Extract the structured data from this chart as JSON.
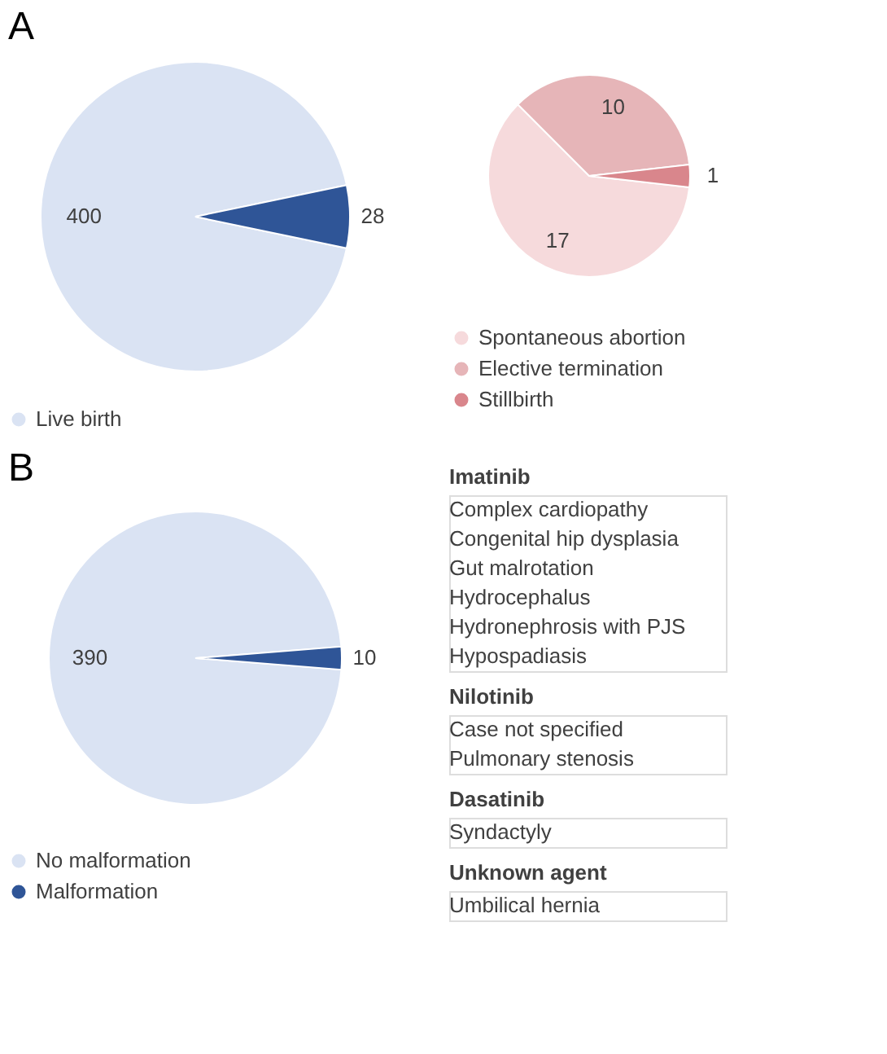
{
  "chart_data": [
    {
      "type": "pie",
      "title": "A",
      "categories": [
        "Live birth",
        null
      ],
      "values": [
        400,
        28
      ],
      "colors": [
        "#dae3f3",
        "#2f5597"
      ],
      "data_labels": true,
      "legend": "bottom"
    },
    {
      "type": "pie",
      "categories": [
        "Spontaneous abortion",
        "Elective termination",
        "Stillbirth"
      ],
      "values": [
        17,
        10,
        1
      ],
      "colors": [
        "#f6dadc",
        "#e6b5b8",
        "#d9868c"
      ],
      "data_labels": true,
      "legend": "bottom"
    },
    {
      "type": "pie",
      "title": "B",
      "categories": [
        "No malformation",
        "Malformation"
      ],
      "values": [
        390,
        10
      ],
      "colors": [
        "#dae3f3",
        "#2f5597"
      ],
      "data_labels": true,
      "legend": "bottom"
    },
    {
      "type": "other",
      "title": "Imatinib",
      "annotations": [
        "Complex cardiopathy",
        "Congenital hip dysplasia",
        "Gut malrotation",
        "Hydrocephalus",
        "Hydronephrosis with PJS",
        "Hypospadiasis"
      ]
    },
    {
      "type": "other",
      "title": "Nilotinib",
      "annotations": [
        "Case not specified",
        "Pulmonary stenosis"
      ]
    },
    {
      "type": "other",
      "title": "Dasatinib",
      "annotations": [
        "Syndactyly"
      ]
    },
    {
      "type": "other",
      "title": "Unknown agent",
      "annotations": [
        "Umbilical hernia"
      ]
    }
  ]
}
